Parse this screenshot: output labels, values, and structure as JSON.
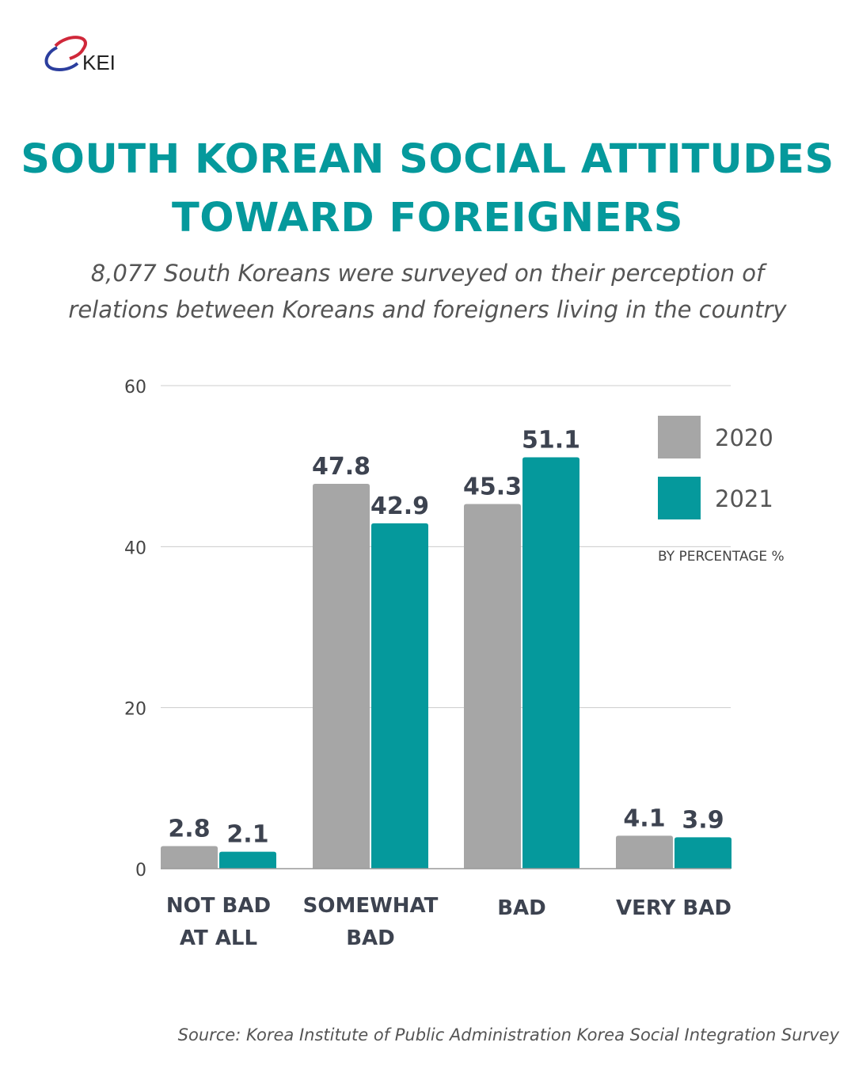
{
  "logo": {
    "text": "KEI"
  },
  "title_lines": [
    "SOUTH KOREAN SOCIAL ATTITUDES",
    "TOWARD FOREIGNERS"
  ],
  "subtitle_lines": [
    "8,077 South Koreans were surveyed on their perception of",
    "relations between Koreans and foreigners living in the country"
  ],
  "source": "Source: Korea Institute of Public Administration Korea Social Integration Survey",
  "chart_data": {
    "type": "bar",
    "categories": [
      [
        "NOT BAD",
        "AT ALL"
      ],
      [
        "SOMEWHAT",
        "BAD"
      ],
      [
        "BAD"
      ],
      [
        "VERY BAD"
      ]
    ],
    "series": [
      {
        "name": "2020",
        "color": "#a6a6a6",
        "values": [
          2.8,
          47.8,
          45.3,
          4.1
        ]
      },
      {
        "name": "2021",
        "color": "#05999c",
        "values": [
          2.1,
          42.9,
          51.1,
          3.9
        ]
      }
    ],
    "yticks": [
      0,
      20,
      40,
      60
    ],
    "ylim": [
      0,
      60
    ],
    "unit_note": "BY PERCENTAGE %",
    "grid": true,
    "legend_position": "top-right"
  }
}
